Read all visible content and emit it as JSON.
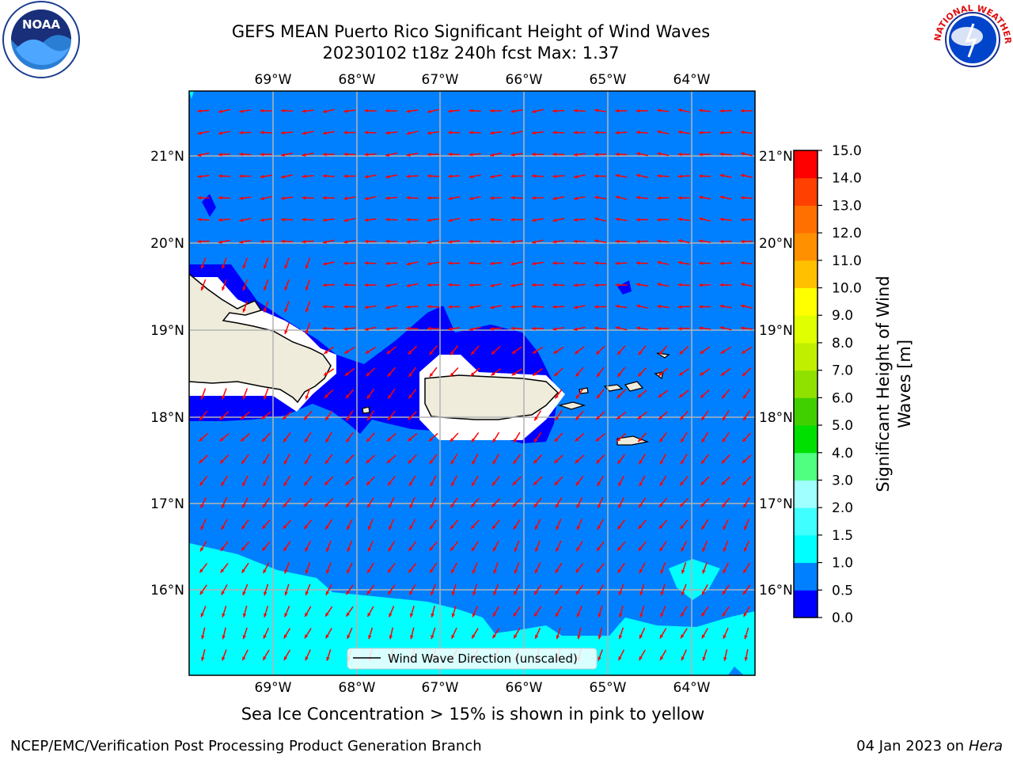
{
  "title": {
    "line1": "GEFS MEAN Puerto Rico Significant Height of Wind Waves",
    "line2": "20230102 t18z 240h fcst   Max: 1.37"
  },
  "map": {
    "lon_labels": [
      "69°W",
      "68°W",
      "67°W",
      "66°W",
      "65°W",
      "64°W"
    ],
    "lat_labels": [
      "21°N",
      "20°N",
      "19°N",
      "18°N",
      "17°N",
      "16°N"
    ],
    "legend_label": "Wind Wave Direction (unscaled)",
    "arrow_color": "#ff0000",
    "land_color": "#efecdc"
  },
  "colorbar": {
    "label": "Significant Height of Wind Waves [m]",
    "ticks": [
      "0.0",
      "0.5",
      "1.0",
      "1.5",
      "2.0",
      "3.0",
      "4.0",
      "5.0",
      "6.0",
      "7.0",
      "8.0",
      "9.0",
      "10.0",
      "11.0",
      "12.0",
      "13.0",
      "14.0",
      "15.0"
    ],
    "colors": [
      "#0000ff",
      "#0080ff",
      "#00ffff",
      "#40ffff",
      "#a0ffff",
      "#50ff80",
      "#00e000",
      "#40d000",
      "#90e000",
      "#c0f000",
      "#e0ff00",
      "#ffff00",
      "#ffc000",
      "#ff9000",
      "#ff7000",
      "#ff4000",
      "#ff0000"
    ]
  },
  "note": "Sea Ice Concentration > 15% is shown in pink to yellow",
  "footer": {
    "left": "NCEP/EMC/Verification Post Processing Product Generation Branch",
    "right_prefix": "04 Jan 2023 on",
    "right_host": "Hera"
  },
  "logos": {
    "noaa_text": "NOAA",
    "nws_text": "NATIONAL WEATHER SERVICE"
  }
}
